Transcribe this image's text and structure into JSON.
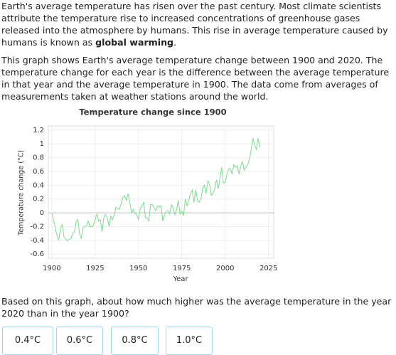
{
  "paragraphs": [
    {
      "text": "Earth's average temperature has risen over the past century. Most climate scientists attribute the temperature rise to increased concentrations of greenhouse gases released into the atmosphere by humans. This rise in average temperature caused by humans is known as ",
      "bold": "global warming",
      "end": "."
    },
    {
      "text": "This graph shows Earth's average temperature change between 1900 and 2020. The temperature change for each year is the difference between the average temperature in that year and the average temperature in 1900. The data come from averages of measurements taken at weather stations around the world."
    }
  ],
  "chart_data": {
    "type": "line",
    "title": "Temperature change since 1900",
    "x_label": "Year",
    "y_label": "Temperature change (°C)",
    "x": [
      1900,
      1901,
      1902,
      1903,
      1904,
      1905,
      1906,
      1907,
      1908,
      1909,
      1910,
      1911,
      1912,
      1913,
      1914,
      1915,
      1916,
      1917,
      1918,
      1919,
      1920,
      1921,
      1922,
      1923,
      1924,
      1925,
      1926,
      1927,
      1928,
      1929,
      1930,
      1931,
      1932,
      1933,
      1934,
      1935,
      1936,
      1937,
      1938,
      1939,
      1940,
      1941,
      1942,
      1943,
      1944,
      1945,
      1946,
      1947,
      1948,
      1949,
      1950,
      1951,
      1952,
      1953,
      1954,
      1955,
      1956,
      1957,
      1958,
      1959,
      1960,
      1961,
      1962,
      1963,
      1964,
      1965,
      1966,
      1967,
      1968,
      1969,
      1970,
      1971,
      1972,
      1973,
      1974,
      1975,
      1976,
      1977,
      1978,
      1979,
      1980,
      1981,
      1982,
      1983,
      1984,
      1985,
      1986,
      1987,
      1988,
      1989,
      1990,
      1991,
      1992,
      1993,
      1994,
      1995,
      1996,
      1997,
      1998,
      1999,
      2000,
      2001,
      2002,
      2003,
      2004,
      2005,
      2006,
      2007,
      2008,
      2009,
      2010,
      2011,
      2012,
      2013,
      2014,
      2015,
      2016,
      2017,
      2018,
      2019,
      2020
    ],
    "series": [
      {
        "name": "Temperature change",
        "color": "#7ddc8f",
        "values": [
          0,
          -0.1,
          -0.22,
          -0.33,
          -0.4,
          -0.22,
          -0.17,
          -0.35,
          -0.38,
          -0.41,
          -0.38,
          -0.38,
          -0.3,
          -0.28,
          -0.14,
          -0.1,
          -0.3,
          -0.37,
          -0.22,
          -0.2,
          -0.19,
          -0.12,
          -0.2,
          -0.2,
          -0.18,
          -0.1,
          -0.02,
          -0.12,
          -0.1,
          -0.28,
          -0.07,
          -0.03,
          -0.07,
          -0.2,
          -0.05,
          -0.1,
          -0.03,
          0.08,
          0.06,
          0.05,
          0.13,
          0.22,
          0.25,
          0.18,
          0.28,
          0.15,
          0,
          0.05,
          -0.02,
          -0.02,
          -0.1,
          0.05,
          0.1,
          0.15,
          -0.07,
          -0.08,
          -0.12,
          0.12,
          0.12,
          0.07,
          0.03,
          0.1,
          0.08,
          0.1,
          -0.12,
          -0.03,
          0.02,
          0.03,
          -0.02,
          0.12,
          0.07,
          -0.03,
          0.05,
          0.18,
          -0.02,
          0.02,
          -0.04,
          0.2,
          0.1,
          0.18,
          0.28,
          0.33,
          0.15,
          0.33,
          0.18,
          0.15,
          0.2,
          0.35,
          0.4,
          0.28,
          0.46,
          0.42,
          0.25,
          0.28,
          0.35,
          0.48,
          0.35,
          0.5,
          0.66,
          0.43,
          0.44,
          0.56,
          0.64,
          0.64,
          0.56,
          0.7,
          0.66,
          0.68,
          0.56,
          0.68,
          0.74,
          0.62,
          0.66,
          0.7,
          0.77,
          0.92,
          1.08,
          0.98,
          0.92,
          1.08,
          0.95
        ]
      }
    ],
    "xlim": [
      1898,
      2028
    ],
    "xticks": [
      1900,
      1925,
      1950,
      1975,
      2000,
      2025
    ],
    "ylim": [
      -0.66,
      1.26
    ],
    "yticks": [
      -0.6,
      -0.4,
      -0.2,
      0,
      0.2,
      0.4,
      0.6,
      0.8,
      1,
      1.2
    ],
    "grid": true
  },
  "question": "Based on this graph, about how much higher was the average temperature in the year 2020 than in the year 1900?",
  "options": [
    "0.4°C",
    "0.6°C",
    "0.8°C",
    "1.0°C"
  ]
}
